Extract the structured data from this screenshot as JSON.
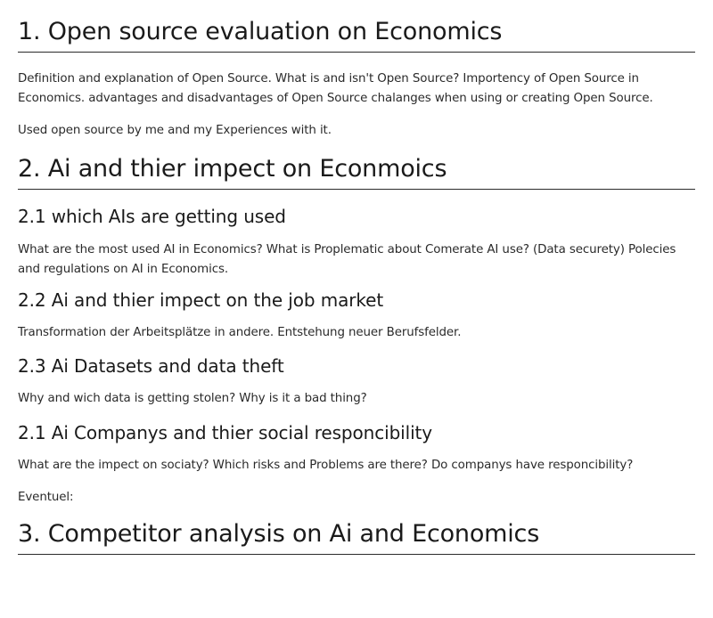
{
  "sections": [
    {
      "heading": "1. Open source evaluation on Economics",
      "paragraphs": [
        "Definition and explanation of Open Source. What is and isn't Open Source? Importency of Open Source in Economics. advantages and disadvantages of Open Source chalanges when using or creating Open Source.",
        "Used open source by me and my Experiences with it."
      ]
    },
    {
      "heading": "2. Ai and thier impect on Econmoics",
      "subsections": [
        {
          "heading": "2.1 which AIs are getting used",
          "text": "What are the most used AI in Economics? What is Proplematic about Comerate AI use? (Data securety) Polecies and regulations on AI in Economics."
        },
        {
          "heading": "2.2 Ai and thier impect on the job market",
          "text": "Transformation der Arbeitsplätze in andere. Entstehung neuer Berufsfelder."
        },
        {
          "heading": "2.3 Ai Datasets and data theft",
          "text": "Why and wich data is getting stolen? Why is it a bad thing?"
        },
        {
          "heading": "2.1 Ai Companys and thier social responcibility",
          "text": "What are the impect on sociaty? Which risks and Problems are there? Do companys have responcibility?",
          "extra": "Eventuel:"
        }
      ]
    },
    {
      "heading": "3. Competitor analysis on Ai and Economics"
    }
  ]
}
